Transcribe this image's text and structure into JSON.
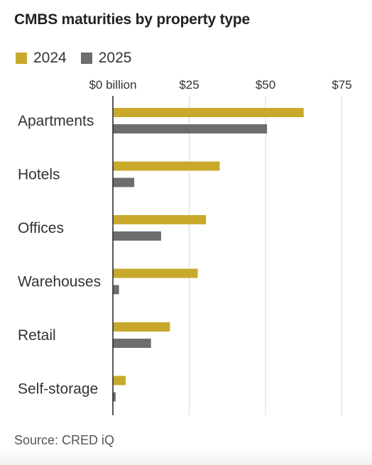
{
  "title": "CMBS maturities by property type",
  "source": "Source: CRED iQ",
  "colors": {
    "s2024": "#c8a92c",
    "s2025": "#6d6d6d",
    "grid": "#d9d9d9",
    "axis": "#222222"
  },
  "chart_data": {
    "type": "bar",
    "orientation": "horizontal",
    "title": "CMBS maturities by property type",
    "categories": [
      "Apartments",
      "Hotels",
      "Offices",
      "Warehouses",
      "Retail",
      "Self-storage"
    ],
    "series": [
      {
        "name": "2024",
        "values": [
          62.5,
          35,
          30.5,
          27.8,
          18.7,
          4.2
        ]
      },
      {
        "name": "2025",
        "values": [
          50.5,
          7,
          15.8,
          2,
          12.5,
          0.9
        ]
      }
    ],
    "xlim": [
      0,
      75
    ],
    "x_ticks": [
      0,
      25,
      50,
      75
    ],
    "x_tick_labels": [
      "$0 billion",
      "$25",
      "$50",
      "$75"
    ],
    "legend_position": "top-left",
    "grid": true
  }
}
